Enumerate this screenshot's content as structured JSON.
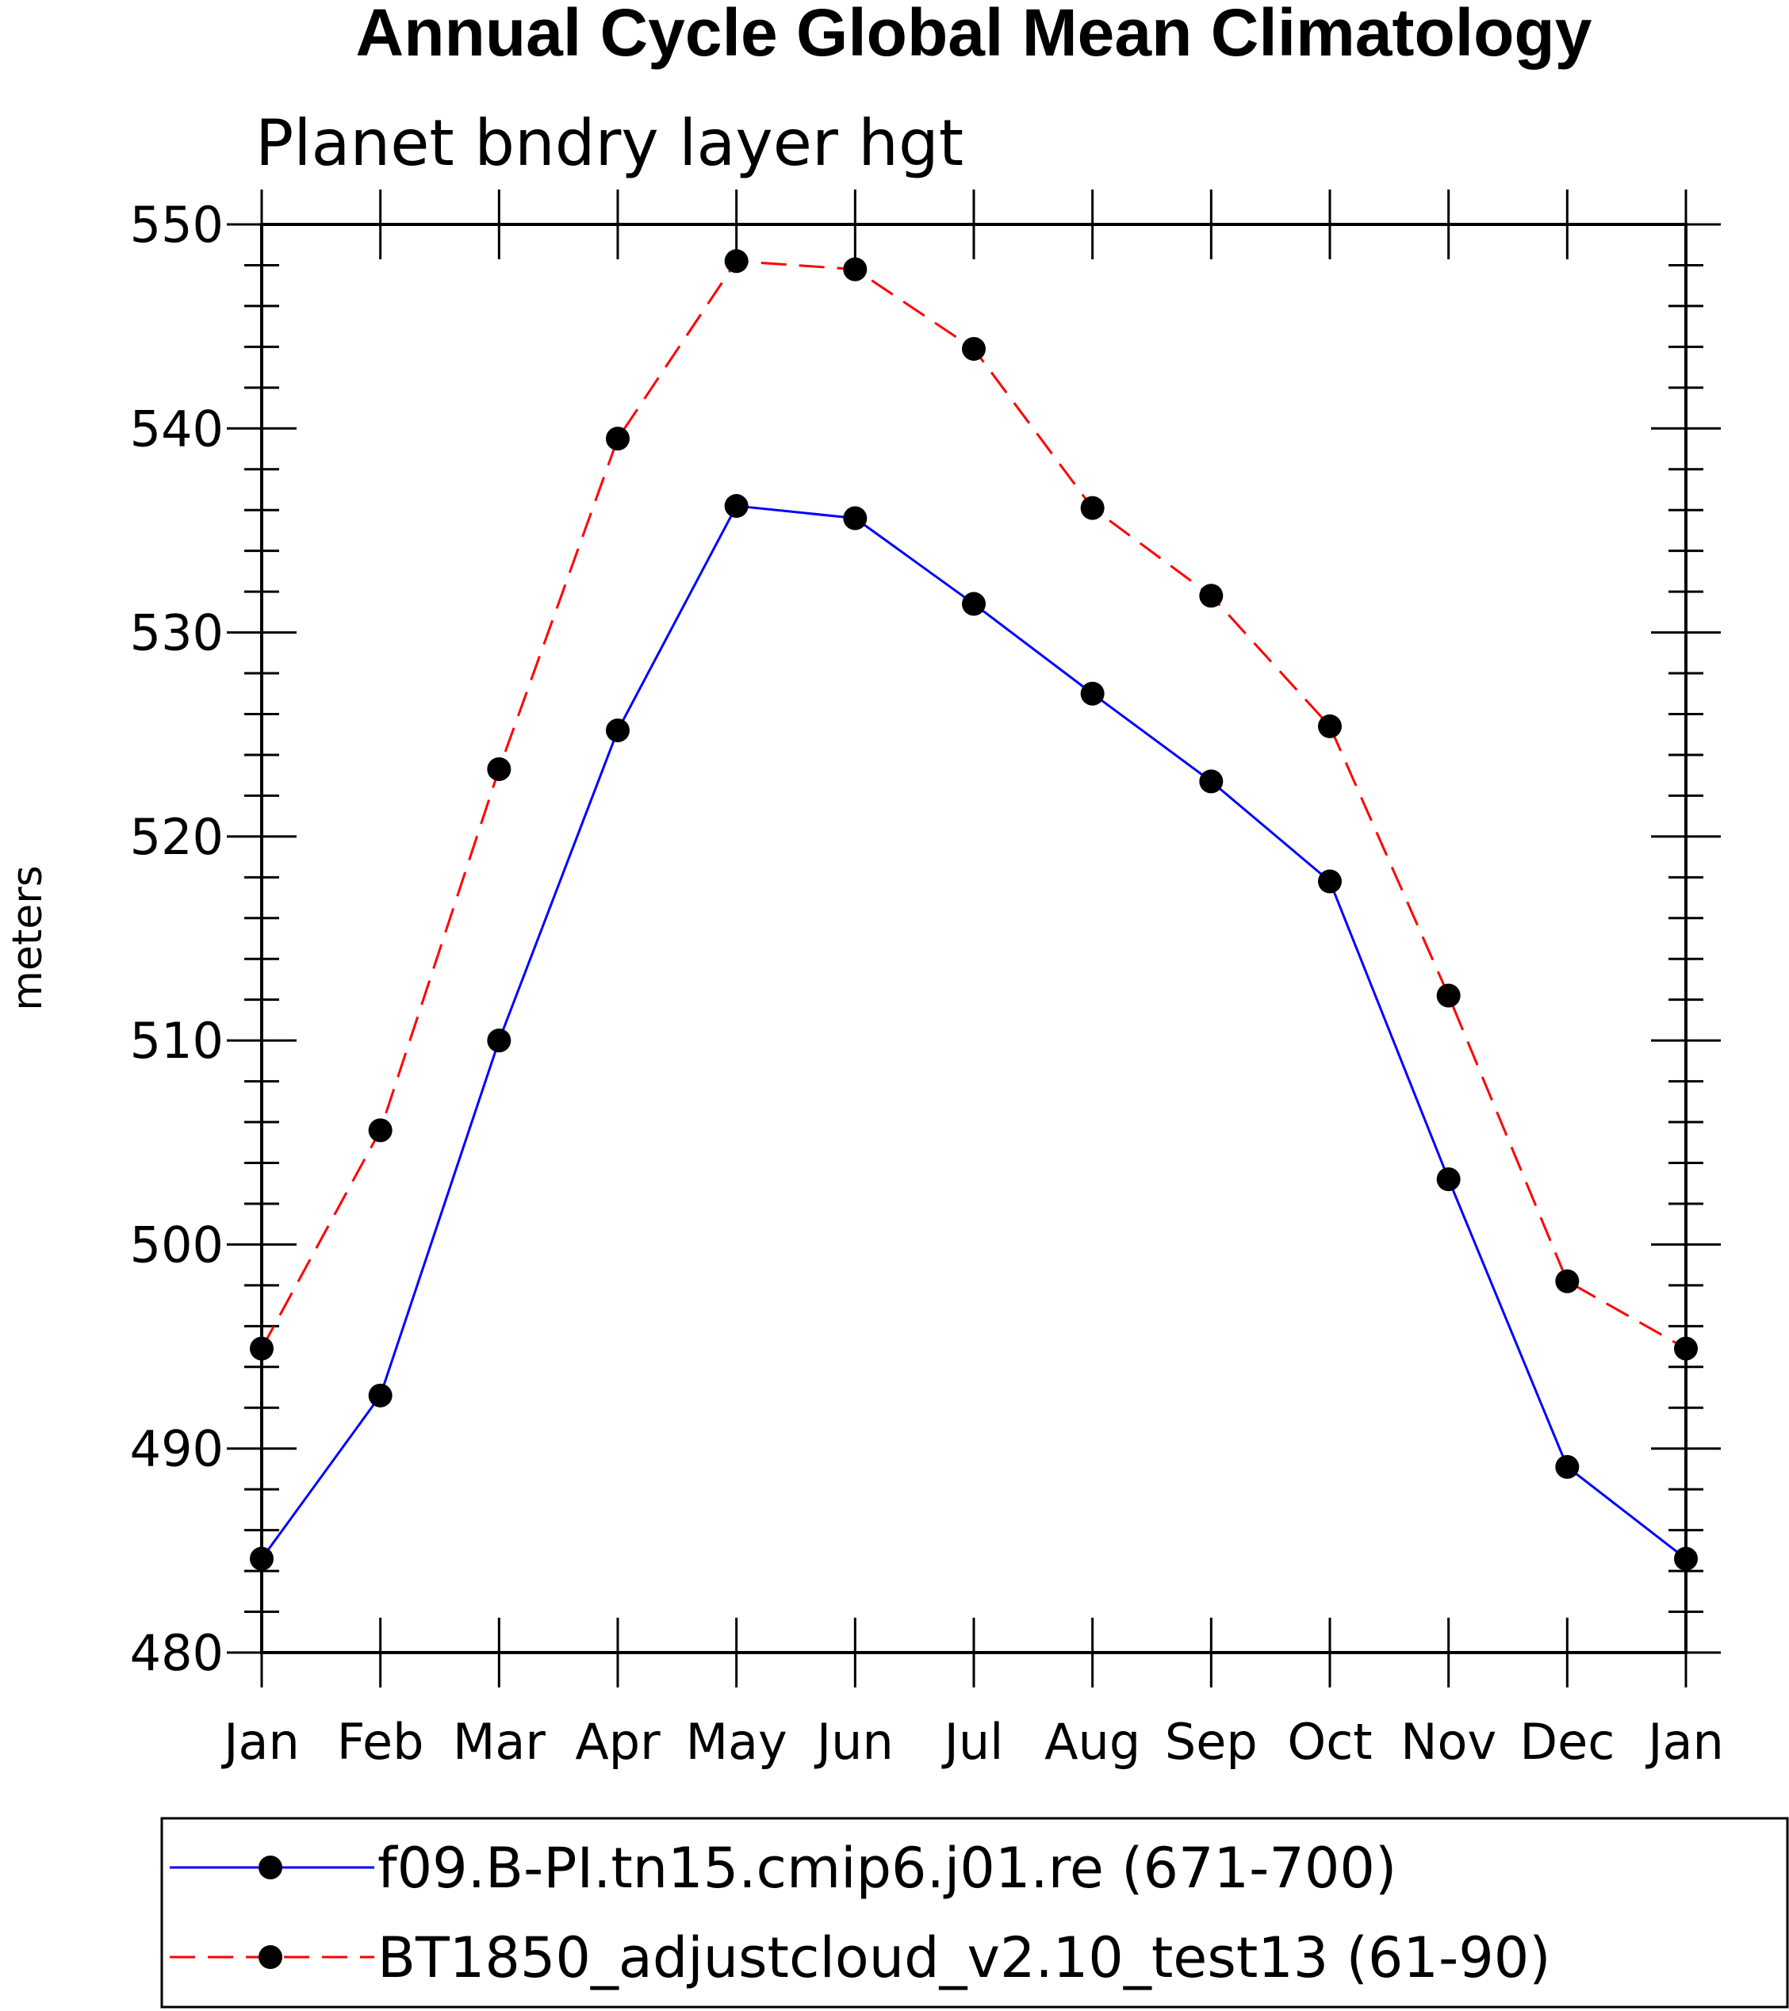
{
  "chart_data": {
    "type": "line",
    "title": "Annual Cycle Global Mean Climatology",
    "subtitle": "Planet bndry layer hgt",
    "xlabel": "",
    "ylabel": "meters",
    "categories": [
      "Jan",
      "Feb",
      "Mar",
      "Apr",
      "May",
      "Jun",
      "Jul",
      "Aug",
      "Sep",
      "Oct",
      "Nov",
      "Dec",
      "Jan"
    ],
    "ylim": [
      480,
      550
    ],
    "yticks": [
      "480",
      "490",
      "500",
      "510",
      "520",
      "530",
      "540",
      "550"
    ],
    "grid": false,
    "legend_position": "bottom",
    "series": [
      {
        "name": "f09.B-PI.tn15.cmip6.j01.re (671-700)",
        "color": "#0000ff",
        "style": "solid",
        "marker": "filled-circle",
        "values": [
          484.6,
          492.6,
          510.0,
          525.2,
          536.2,
          535.6,
          531.4,
          527.0,
          522.7,
          517.8,
          503.2,
          489.1,
          484.6
        ]
      },
      {
        "name": "BT1850_adjustcloud_v2.10_test13 (61-90)",
        "color": "#ff0000",
        "style": "dashed",
        "marker": "filled-circle",
        "values": [
          494.9,
          505.6,
          523.3,
          539.5,
          548.2,
          547.8,
          543.9,
          536.1,
          531.8,
          525.4,
          512.2,
          498.2,
          494.9
        ]
      }
    ]
  }
}
